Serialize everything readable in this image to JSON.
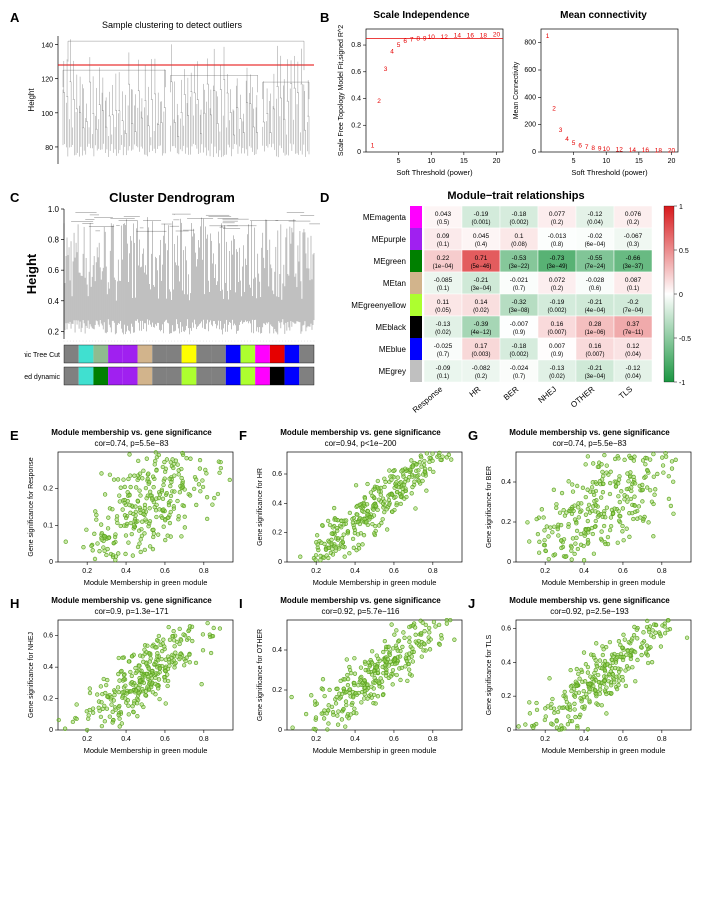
{
  "panelA": {
    "label": "A",
    "title": "Sample clustering to detect outliers",
    "ylabel": "Height",
    "yticks": [
      80,
      100,
      120,
      140
    ],
    "cutline_y": 128,
    "line_color": "#e60000",
    "tree_color": "#666666",
    "background": "#ffffff"
  },
  "panelB": {
    "label": "B",
    "left": {
      "title": "Scale Independence",
      "ylabel": "Scale Free Topology Model Fit,signed R^2",
      "xlabel": "Soft Threshold (power)",
      "xticks": [
        5,
        10,
        15,
        20
      ],
      "yticks": [
        0.0,
        0.2,
        0.4,
        0.6,
        0.8
      ],
      "hline_y": 0.85,
      "hline_color": "#e60000",
      "point_color": "#e60000",
      "points": [
        {
          "x": 1,
          "y": 0.05,
          "lab": "1"
        },
        {
          "x": 2,
          "y": 0.38,
          "lab": "2"
        },
        {
          "x": 3,
          "y": 0.62,
          "lab": "3"
        },
        {
          "x": 4,
          "y": 0.75,
          "lab": "4"
        },
        {
          "x": 5,
          "y": 0.8,
          "lab": "5"
        },
        {
          "x": 6,
          "y": 0.83,
          "lab": "6"
        },
        {
          "x": 7,
          "y": 0.84,
          "lab": "7"
        },
        {
          "x": 8,
          "y": 0.85,
          "lab": "8"
        },
        {
          "x": 9,
          "y": 0.85,
          "lab": "9"
        },
        {
          "x": 10,
          "y": 0.86,
          "lab": "10"
        },
        {
          "x": 12,
          "y": 0.86,
          "lab": "12"
        },
        {
          "x": 14,
          "y": 0.87,
          "lab": "14"
        },
        {
          "x": 16,
          "y": 0.87,
          "lab": "16"
        },
        {
          "x": 18,
          "y": 0.87,
          "lab": "18"
        },
        {
          "x": 20,
          "y": 0.88,
          "lab": "20"
        }
      ]
    },
    "right": {
      "title": "Mean connectivity",
      "ylabel": "Mean Connectivity",
      "xlabel": "Soft Threshold (power)",
      "xticks": [
        5,
        10,
        15,
        20
      ],
      "yticks": [
        0,
        200,
        400,
        600,
        800
      ],
      "point_color": "#e60000",
      "points": [
        {
          "x": 1,
          "y": 850,
          "lab": "1"
        },
        {
          "x": 2,
          "y": 320,
          "lab": "2"
        },
        {
          "x": 3,
          "y": 160,
          "lab": "3"
        },
        {
          "x": 4,
          "y": 95,
          "lab": "4"
        },
        {
          "x": 5,
          "y": 65,
          "lab": "5"
        },
        {
          "x": 6,
          "y": 48,
          "lab": "6"
        },
        {
          "x": 7,
          "y": 38,
          "lab": "7"
        },
        {
          "x": 8,
          "y": 30,
          "lab": "8"
        },
        {
          "x": 9,
          "y": 25,
          "lab": "9"
        },
        {
          "x": 10,
          "y": 22,
          "lab": "10"
        },
        {
          "x": 12,
          "y": 18,
          "lab": "12"
        },
        {
          "x": 14,
          "y": 15,
          "lab": "14"
        },
        {
          "x": 16,
          "y": 13,
          "lab": "16"
        },
        {
          "x": 18,
          "y": 11,
          "lab": "18"
        },
        {
          "x": 20,
          "y": 10,
          "lab": "20"
        }
      ]
    }
  },
  "panelC": {
    "label": "C",
    "title": "Cluster Dendrogram",
    "ylabel": "Height",
    "yticks": [
      0.2,
      0.4,
      0.6,
      0.8,
      1.0
    ],
    "tree_color": "#000000",
    "row_labels": [
      "Dynamic Tree Cut",
      "Merged dynamic"
    ],
    "row1_colors": [
      "#808080",
      "#40e0d0",
      "#8fbc8f",
      "#a020f0",
      "#a020f0",
      "#d2b48c",
      "#808080",
      "#808080",
      "#ffff00",
      "#808080",
      "#808080",
      "#0000ff",
      "#adff2f",
      "#ff00ff",
      "#e60000",
      "#0000ff",
      "#808080"
    ],
    "row2_colors": [
      "#808080",
      "#40e0d0",
      "#008000",
      "#a020f0",
      "#a020f0",
      "#d2b48c",
      "#808080",
      "#808080",
      "#adff2f",
      "#808080",
      "#808080",
      "#0000ff",
      "#adff2f",
      "#ff00ff",
      "#000000",
      "#0000ff",
      "#808080"
    ]
  },
  "panelD": {
    "label": "D",
    "title": "Module−trait relationships",
    "row_labels": [
      "MEmagenta",
      "MEpurple",
      "MEgreen",
      "MEtan",
      "MEgreenyellow",
      "MEblack",
      "MEblue",
      "MEgrey"
    ],
    "row_colors": [
      "#ff00ff",
      "#a020f0",
      "#008000",
      "#d2b48c",
      "#adff2f",
      "#000000",
      "#0000ff",
      "#c0c0c0"
    ],
    "col_labels": [
      "Response",
      "HR",
      "BER",
      "NHEJ",
      "OTHER",
      "TLS"
    ],
    "scale_colors": {
      "neg": "#1a9641",
      "mid": "#ffffff",
      "pos": "#d7191c"
    },
    "scale_ticks": [
      -1,
      -0.5,
      0,
      0.5,
      1
    ],
    "cells": [
      [
        {
          "v": 0.043,
          "p": "(0.5)"
        },
        {
          "v": -0.19,
          "p": "(0.001)"
        },
        {
          "v": -0.18,
          "p": "(0.002)"
        },
        {
          "v": 0.077,
          "p": "(0.2)"
        },
        {
          "v": -0.12,
          "p": "(0.04)"
        },
        {
          "v": 0.076,
          "p": "(0.2)"
        }
      ],
      [
        {
          "v": 0.09,
          "p": "(0.1)"
        },
        {
          "v": 0.045,
          "p": "(0.4)"
        },
        {
          "v": 0.1,
          "p": "(0.08)"
        },
        {
          "v": -0.013,
          "p": "(0.8)"
        },
        {
          "v": -0.02,
          "p": "(6e−04)"
        },
        {
          "v": -0.067,
          "p": "(0.3)"
        }
      ],
      [
        {
          "v": 0.22,
          "p": "(1e−04)"
        },
        {
          "v": 0.71,
          "p": "(5e−46)"
        },
        {
          "v": -0.53,
          "p": "(3e−22)"
        },
        {
          "v": -0.73,
          "p": "(3e−49)"
        },
        {
          "v": -0.55,
          "p": "(7e−24)"
        },
        {
          "v": -0.66,
          "p": "(3e−37)"
        }
      ],
      [
        {
          "v": -0.085,
          "p": "(0.1)"
        },
        {
          "v": -0.21,
          "p": "(3e−04)"
        },
        {
          "v": -0.021,
          "p": "(0.7)"
        },
        {
          "v": 0.072,
          "p": "(0.2)"
        },
        {
          "v": -0.028,
          "p": "(0.6)"
        },
        {
          "v": 0.087,
          "p": "(0.1)"
        }
      ],
      [
        {
          "v": 0.11,
          "p": "(0.05)"
        },
        {
          "v": 0.14,
          "p": "(0.02)"
        },
        {
          "v": -0.32,
          "p": "(3e−08)"
        },
        {
          "v": -0.19,
          "p": "(0.002)"
        },
        {
          "v": -0.21,
          "p": "(4e−04)"
        },
        {
          "v": -0.2,
          "p": "(7e−04)"
        }
      ],
      [
        {
          "v": -0.13,
          "p": "(0.02)"
        },
        {
          "v": -0.39,
          "p": "(4e−12)"
        },
        {
          "v": -0.007,
          "p": "(0.9)"
        },
        {
          "v": 0.16,
          "p": "(0.007)"
        },
        {
          "v": 0.28,
          "p": "(1e−06)"
        },
        {
          "v": 0.37,
          "p": "(7e−11)"
        }
      ],
      [
        {
          "v": -0.025,
          "p": "(0.7)"
        },
        {
          "v": 0.17,
          "p": "(0.003)"
        },
        {
          "v": -0.18,
          "p": "(0.002)"
        },
        {
          "v": 0.007,
          "p": "(0.9)"
        },
        {
          "v": 0.16,
          "p": "(0.007)"
        },
        {
          "v": 0.12,
          "p": "(0.04)"
        }
      ],
      [
        {
          "v": -0.09,
          "p": "(0.1)"
        },
        {
          "v": -0.082,
          "p": "(0.2)"
        },
        {
          "v": -0.024,
          "p": "(0.7)"
        },
        {
          "v": -0.13,
          "p": "(0.02)"
        },
        {
          "v": -0.21,
          "p": "(3e−04)"
        },
        {
          "v": -0.12,
          "p": "(0.04)"
        }
      ]
    ]
  },
  "scatter_common": {
    "xlabel": "Module Membership in green module",
    "xticks": [
      0.2,
      0.4,
      0.6,
      0.8
    ],
    "point_color": "#8fd14f",
    "point_stroke": "#5da320"
  },
  "panelE": {
    "label": "E",
    "title": "Module membership vs. gene significance",
    "sub": "cor=0.74, p=5.5e−83",
    "ylabel": "Gene significance for Response",
    "yticks": [
      0.0,
      0.1,
      0.2
    ],
    "ylim": [
      0,
      0.3
    ]
  },
  "panelF": {
    "label": "F",
    "title": "Module membership vs. gene significance",
    "sub": "cor=0.94, p<1e−200",
    "ylabel": "Gene significance for HR",
    "yticks": [
      0.0,
      0.2,
      0.4,
      0.6
    ],
    "ylim": [
      0,
      0.75
    ]
  },
  "panelG": {
    "label": "G",
    "title": "Module membership vs. gene significance",
    "sub": "cor=0.74, p=5.5e−83",
    "ylabel": "Gene significance for BER",
    "yticks": [
      0.0,
      0.2,
      0.4
    ],
    "ylim": [
      0,
      0.55
    ]
  },
  "panelH": {
    "label": "H",
    "title": "Module membership vs. gene significance",
    "sub": "cor=0.9, p=1.3e−171",
    "ylabel": "Gene significance for  NHEJ",
    "yticks": [
      0.0,
      0.2,
      0.4,
      0.6
    ],
    "ylim": [
      0,
      0.7
    ]
  },
  "panelI": {
    "label": "I",
    "title": "Module membership vs. gene significance",
    "sub": "cor=0.92, p=5.7e−116",
    "ylabel": "Gene significance for OTHER",
    "yticks": [
      0.0,
      0.2,
      0.4
    ],
    "ylim": [
      0,
      0.55
    ]
  },
  "panelJ": {
    "label": "J",
    "title": "Module membership vs. gene significance",
    "sub": "cor=0.92, p=2.5e−193",
    "ylabel": "Gene significance for TLS",
    "yticks": [
      0.0,
      0.2,
      0.4,
      0.6
    ],
    "ylim": [
      0,
      0.65
    ]
  }
}
